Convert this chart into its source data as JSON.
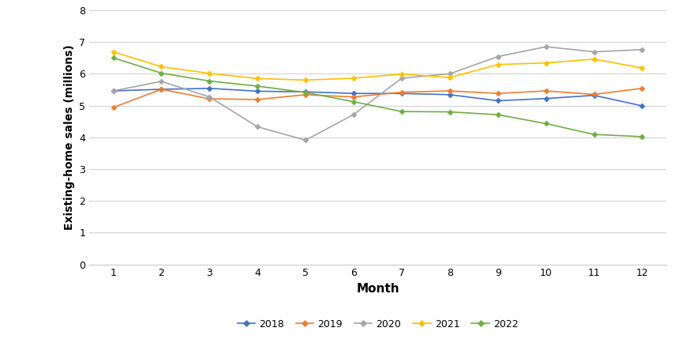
{
  "months": [
    1,
    2,
    3,
    4,
    5,
    6,
    7,
    8,
    9,
    10,
    11,
    12
  ],
  "series": {
    "2018": {
      "values": [
        5.46,
        5.51,
        5.54,
        5.45,
        5.43,
        5.38,
        5.38,
        5.34,
        5.15,
        5.22,
        5.32,
        4.99
      ],
      "color": "#4472C4",
      "marker": "D"
    },
    "2019": {
      "values": [
        4.94,
        5.51,
        5.21,
        5.19,
        5.34,
        5.27,
        5.42,
        5.46,
        5.38,
        5.46,
        5.35,
        5.54
      ],
      "color": "#ED7D31",
      "marker": "D"
    },
    "2020": {
      "values": [
        5.46,
        5.76,
        5.27,
        4.33,
        3.91,
        4.72,
        5.86,
        6.0,
        6.54,
        6.85,
        6.69,
        6.76
      ],
      "color": "#A5A5A5",
      "marker": "D"
    },
    "2021": {
      "values": [
        6.69,
        6.22,
        6.01,
        5.85,
        5.8,
        5.86,
        5.99,
        5.88,
        6.29,
        6.34,
        6.46,
        6.18
      ],
      "color": "#FFC000",
      "marker": "D"
    },
    "2022": {
      "values": [
        6.5,
        6.02,
        5.77,
        5.61,
        5.41,
        5.12,
        4.81,
        4.8,
        4.71,
        4.43,
        4.09,
        4.02
      ],
      "color": "#70AD47",
      "marker": "D"
    }
  },
  "xlabel": "Month",
  "ylabel": "Existing-home sales (millions)",
  "ylim": [
    0,
    8
  ],
  "yticks": [
    0,
    1,
    2,
    3,
    4,
    5,
    6,
    7,
    8
  ],
  "xlim": [
    0.5,
    12.5
  ],
  "xticks": [
    1,
    2,
    3,
    4,
    5,
    6,
    7,
    8,
    9,
    10,
    11,
    12
  ],
  "legend_order": [
    "2018",
    "2019",
    "2020",
    "2021",
    "2022"
  ],
  "background_color": "#FFFFFF",
  "grid_color": "#D3D3D3",
  "font_family": "DejaVu Sans"
}
